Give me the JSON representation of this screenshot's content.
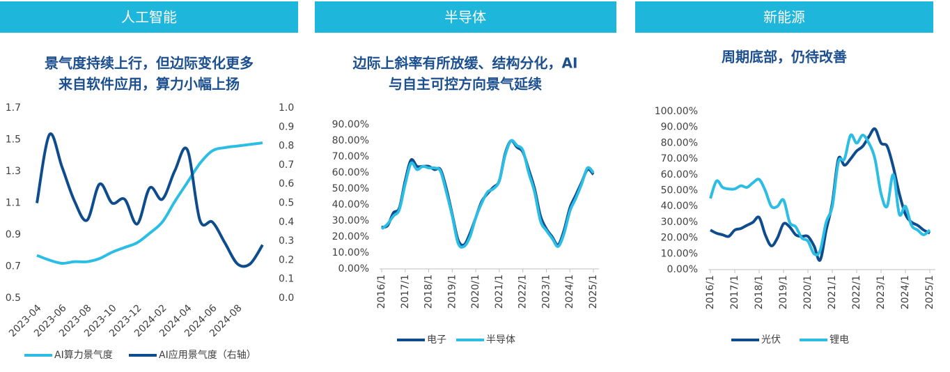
{
  "chart_data": [
    {
      "type": "line",
      "header": "人工智能",
      "title": [
        "景气度持续上行，但边际变化更多",
        "来自软件应用，算力小幅上扬"
      ],
      "categories": [
        "2023-04",
        null,
        "2023-06",
        null,
        "2023-08",
        null,
        "2023-10",
        null,
        "2023-12",
        null,
        "2024-02",
        null,
        "2024-04",
        null,
        "2024-06",
        null,
        "2024-08",
        null,
        null
      ],
      "ylim": [
        0.5,
        1.7
      ],
      "yticks": [
        0.5,
        0.7,
        0.9,
        1.1,
        1.3,
        1.5,
        1.7
      ],
      "y2lim": [
        0,
        1
      ],
      "y2ticks": [
        {
          "value": 0,
          "label": "0.0"
        },
        0.1,
        0.2,
        0.3,
        0.4,
        0.5,
        0.6,
        0.7,
        0.8,
        0.9,
        {
          "value": 1,
          "label": "1.0"
        }
      ],
      "series": [
        {
          "name": "AI算力景气度",
          "color": "#2bbde3",
          "values": [
            0.77,
            0.74,
            0.72,
            0.73,
            0.73,
            0.75,
            0.79,
            0.82,
            0.85,
            0.91,
            0.98,
            1.11,
            1.23,
            1.35,
            1.43,
            1.45,
            1.46,
            1.47,
            1.48
          ]
        },
        {
          "name": "AI应用景气度（右轴）",
          "color": "#0f4c8e",
          "axis": "y2",
          "values": [
            0.5,
            0.86,
            0.69,
            0.51,
            0.41,
            0.6,
            0.5,
            0.52,
            0.39,
            0.58,
            0.52,
            0.67,
            0.78,
            0.41,
            0.4,
            0.29,
            0.18,
            0.18,
            0.28
          ]
        }
      ]
    },
    {
      "type": "line",
      "header": "半导体",
      "title": [
        "边际上斜率有所放缓、结构分化，AI",
        "与自主可控方向景气延续"
      ],
      "categories": [
        "2016/1",
        null,
        null,
        null,
        "2017/1",
        null,
        null,
        null,
        "2018/1",
        null,
        null,
        null,
        "2019/1",
        null,
        null,
        null,
        "2020/1",
        null,
        null,
        null,
        "2021/1",
        null,
        null,
        null,
        "2022/1",
        null,
        null,
        null,
        "2023/1",
        null,
        null,
        null,
        "2024/1",
        null,
        null,
        null,
        "2025/1"
      ],
      "ylim": [
        0,
        90
      ],
      "yticks": [
        {
          "value": 0,
          "label": "0.00%"
        },
        {
          "value": 10,
          "label": "10.00%"
        },
        {
          "value": 20,
          "label": "20.00%"
        },
        {
          "value": 30,
          "label": "30.00%"
        },
        {
          "value": 40,
          "label": "40.00%"
        },
        {
          "value": 50,
          "label": "50.00%"
        },
        {
          "value": 60,
          "label": "60.00%"
        },
        {
          "value": 70,
          "label": "70.00%"
        },
        {
          "value": 80,
          "label": "80.00%"
        },
        {
          "value": 90,
          "label": "90.00%"
        }
      ],
      "series": [
        {
          "name": "电子",
          "color": "#0f4c8e",
          "values": [
            26,
            27,
            35,
            38,
            55,
            68,
            64,
            64,
            64,
            62,
            62,
            50,
            34,
            18,
            15,
            22,
            32,
            42,
            47,
            51,
            55,
            72,
            80,
            76,
            73,
            62,
            50,
            33,
            25,
            20,
            15,
            24,
            38,
            46,
            54,
            62,
            59
          ]
        },
        {
          "name": "半导体",
          "color": "#2bbde3",
          "values": [
            25,
            28,
            33,
            37,
            53,
            66,
            62,
            64,
            63,
            63,
            61,
            48,
            33,
            16,
            14,
            20,
            32,
            41,
            48,
            50,
            55,
            71,
            80,
            77,
            74,
            60,
            48,
            30,
            24,
            19,
            14,
            22,
            36,
            44,
            53,
            63,
            60
          ]
        }
      ]
    },
    {
      "type": "line",
      "header": "新能源",
      "title": [
        "周期底部，仍待改善"
      ],
      "categories": [
        "2016/1",
        null,
        null,
        null,
        "2017/1",
        null,
        null,
        null,
        "2018/1",
        null,
        null,
        null,
        "2019/1",
        null,
        null,
        null,
        "2020/1",
        null,
        null,
        null,
        "2021/1",
        null,
        null,
        null,
        "2022/1",
        null,
        null,
        null,
        "2023/1",
        null,
        null,
        null,
        "2024/1",
        null,
        null,
        null,
        "2025/1"
      ],
      "ylim": [
        0,
        100
      ],
      "yticks": [
        {
          "value": 0,
          "label": "0.00%"
        },
        {
          "value": 10,
          "label": "10.00%"
        },
        {
          "value": 20,
          "label": "20.00%"
        },
        {
          "value": 30,
          "label": "30.00%"
        },
        {
          "value": 40,
          "label": "40.00%"
        },
        {
          "value": 50,
          "label": "50.00%"
        },
        {
          "value": 60,
          "label": "60.00%"
        },
        {
          "value": 70,
          "label": "70.00%"
        },
        {
          "value": 80,
          "label": "80.00%"
        },
        {
          "value": 90,
          "label": "90.00%"
        },
        {
          "value": 100,
          "label": "100.00%"
        }
      ],
      "series": [
        {
          "name": "光伏",
          "color": "#0f4c8e",
          "values": [
            25,
            23,
            22,
            21,
            25,
            26,
            28,
            30,
            33,
            22,
            15,
            20,
            29,
            27,
            22,
            21,
            21,
            15,
            6,
            25,
            42,
            70,
            66,
            70,
            75,
            78,
            84,
            89,
            80,
            78,
            65,
            48,
            35,
            30,
            28,
            25,
            23
          ]
        },
        {
          "name": "锂电",
          "color": "#2bbde3",
          "values": [
            45,
            56,
            52,
            51,
            51,
            53,
            52,
            55,
            57,
            50,
            40,
            40,
            44,
            30,
            27,
            20,
            18,
            10,
            12,
            30,
            40,
            68,
            70,
            85,
            80,
            85,
            80,
            70,
            48,
            40,
            60,
            35,
            40,
            28,
            25,
            22,
            25
          ]
        }
      ]
    }
  ]
}
